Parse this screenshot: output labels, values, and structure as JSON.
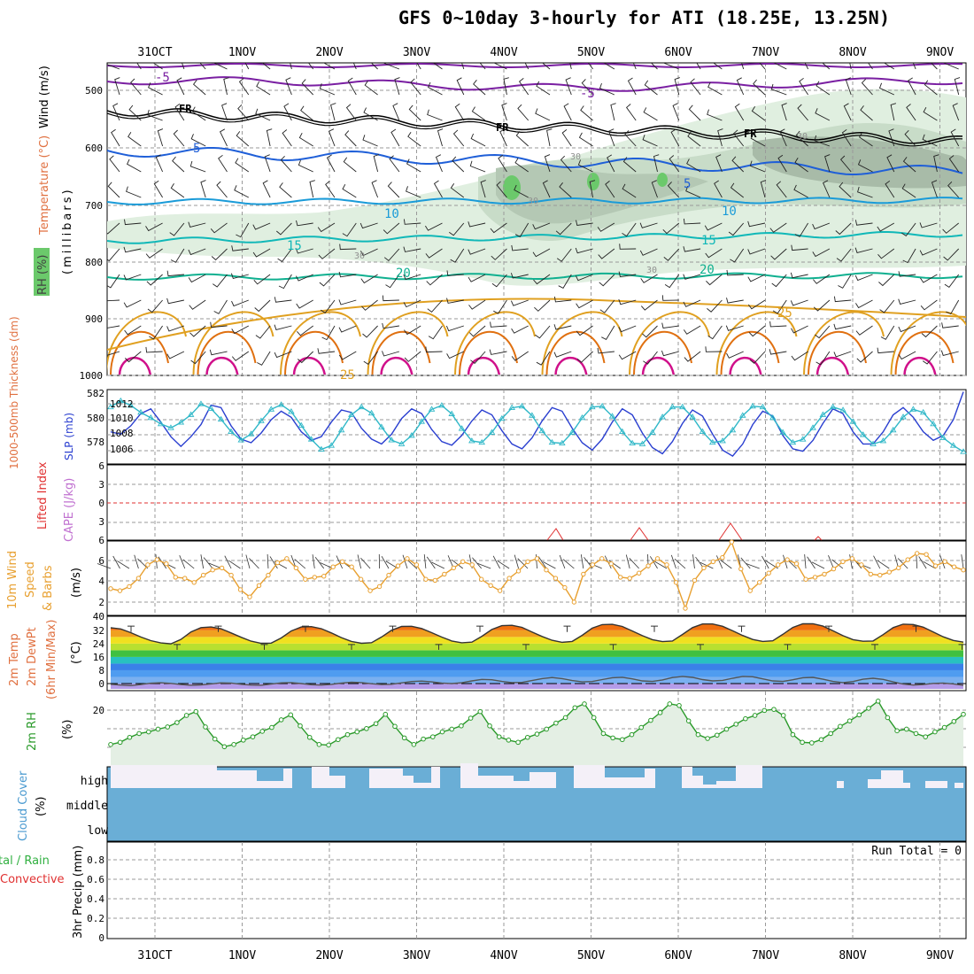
{
  "title": "GFS 0~10day 3-hourly for ATI (18.25E, 13.25N)",
  "date_labels": [
    "31OCT",
    "1NOV",
    "2NOV",
    "3NOV",
    "4NOV",
    "5NOV",
    "6NOV",
    "7NOV",
    "8NOV",
    "9NOV"
  ],
  "colors": {
    "grid": "#9a9a9a",
    "temp_neg": "#7a1fa2",
    "temp_mid": "#1f5fd8",
    "temp_10": "#1a9bd8",
    "temp_15": "#10b8b8",
    "temp_20": "#10b090",
    "temp_25": "#e0a020",
    "temp_30": "#e07010",
    "temp_35": "#d0108a",
    "thickness": "#2a3fd0",
    "slp": "#30b8c8",
    "wind10": "#e8a030",
    "rh2m": "#2a9a2a",
    "cloud": "#6aaed6",
    "cloud_clear": "#f4f0f8",
    "cape_li": "#e03030"
  },
  "panels": {
    "upper_air": {
      "ylabel_wind": "Wind (m/s)",
      "ylabel_temp": "Temperature (°C)",
      "ylabel_rh": "RH (%)",
      "ylabel_units": "(millibars)",
      "y_ticks": [
        "500",
        "600",
        "700",
        "800",
        "900",
        "1000"
      ],
      "contour_labels": [
        "-5",
        "FR",
        "5",
        "10",
        "15",
        "20",
        "25",
        "30"
      ]
    },
    "thickness_slp": {
      "ylabel_left": "1000-500mb Thickness (dm)",
      "ylabel_right": "SLP (mb)",
      "left_ticks": [
        "582",
        "580",
        "578"
      ],
      "right_ticks": [
        "1012",
        "1010",
        "1008",
        "1006"
      ]
    },
    "cape_li": {
      "ylabel_li": "Lifted Index",
      "ylabel_cape": "CAPE (J/kg)",
      "y_ticks": [
        "6",
        "3",
        "0",
        "3",
        "6"
      ]
    },
    "wind10m": {
      "ylabel_a": "10m Wind",
      "ylabel_b": "Speed",
      "ylabel_c": "& Barbs",
      "ylabel_units": "(m/s)",
      "y_ticks": [
        "6",
        "4",
        "2"
      ]
    },
    "temp2m": {
      "ylabel_a": "2m Temp",
      "ylabel_b": "2m DewPt",
      "ylabel_c": "(6hr Min/Max)",
      "ylabel_units": "(°C)",
      "y_ticks": [
        "40",
        "32",
        "24",
        "16",
        "8",
        "0"
      ]
    },
    "rh2m": {
      "ylabel": "2m RH",
      "ylabel_units": "(%)",
      "y_ticks": [
        "20"
      ]
    },
    "cloud": {
      "ylabel": "Cloud Cover",
      "ylabel_units": "(%)",
      "levels": [
        "high",
        "middle",
        "low"
      ]
    },
    "precip": {
      "ylabel_a": "tal / Rain",
      "ylabel_b": "Convective",
      "ylabel_units": "3hr Precip (mm)",
      "y_ticks": [
        "0.8",
        "0.6",
        "0.4",
        "0.2",
        "0"
      ],
      "run_total": "Run Total = 0"
    }
  },
  "chart_data": [
    {
      "type": "line",
      "name": "1000-500mb Thickness / SLP",
      "x_unit": "3-hourly steps from 30 Oct 12Z",
      "series": [
        {
          "name": "Thickness (dm)",
          "values": [
            579.0,
            578.8,
            579.5,
            580.5,
            580.9,
            579.8,
            578.6,
            577.8,
            578.6,
            579.6,
            581.2,
            581.0,
            579.5,
            578.4,
            578.1,
            578.9,
            580.0,
            580.7,
            580.2,
            579.0,
            578.3,
            578.6,
            579.8,
            580.8,
            580.6,
            579.3,
            578.4,
            578.0,
            578.8,
            580.1,
            580.9,
            580.5,
            579.2,
            578.2,
            577.9,
            578.7,
            579.9,
            580.8,
            580.4,
            579.1,
            578.0,
            577.6,
            578.5,
            579.9,
            581.0,
            580.7,
            579.3,
            578.1,
            577.5,
            578.4,
            579.8,
            580.9,
            580.4,
            578.9,
            577.7,
            577.2,
            578.2,
            579.7,
            580.8,
            580.3,
            578.8,
            577.5,
            577.0,
            578.0,
            579.6,
            580.7,
            580.3,
            578.7,
            577.6,
            577.4,
            578.3,
            579.7,
            580.9,
            580.5,
            579.0,
            578.0,
            578.0,
            579.0,
            580.4,
            581.0,
            580.2,
            579.0,
            578.3,
            578.7,
            580.0,
            582.3
          ]
        },
        {
          "name": "SLP (mb)",
          "values": [
            1011.6,
            1012.4,
            1011.8,
            1010.9,
            1010.2,
            1009.4,
            1008.9,
            1009.6,
            1010.6,
            1012.0,
            1011.4,
            1010.0,
            1008.4,
            1007.3,
            1008.1,
            1009.8,
            1011.3,
            1011.9,
            1011.0,
            1009.2,
            1007.4,
            1006.1,
            1006.6,
            1008.6,
            1010.6,
            1011.6,
            1010.8,
            1009.0,
            1007.3,
            1006.8,
            1007.9,
            1009.7,
            1011.3,
            1011.8,
            1010.7,
            1008.8,
            1007.2,
            1007.0,
            1008.3,
            1010.1,
            1011.5,
            1011.7,
            1010.5,
            1008.5,
            1007.0,
            1006.9,
            1008.3,
            1010.2,
            1011.6,
            1011.7,
            1010.4,
            1008.4,
            1006.9,
            1006.8,
            1008.3,
            1010.3,
            1011.6,
            1011.6,
            1010.3,
            1008.4,
            1007.0,
            1007.2,
            1008.6,
            1010.5,
            1011.7,
            1011.6,
            1010.2,
            1008.3,
            1007.0,
            1007.4,
            1008.9,
            1010.6,
            1011.6,
            1011.2,
            1009.7,
            1008.0,
            1006.8,
            1007.2,
            1008.6,
            1010.3,
            1011.3,
            1010.9,
            1009.4,
            1007.6,
            1006.6,
            1005.8
          ]
        }
      ]
    },
    {
      "type": "line",
      "name": "10m Wind Speed",
      "ylim": [
        1,
        7.5
      ],
      "series": [
        {
          "name": "Speed (m/s)",
          "values": [
            3.3,
            3.1,
            3.5,
            4.3,
            5.6,
            6.1,
            5.7,
            4.4,
            4.3,
            3.9,
            4.6,
            5.1,
            5.3,
            4.6,
            3.2,
            2.5,
            3.6,
            4.6,
            5.8,
            6.2,
            5.3,
            4.2,
            4.4,
            4.5,
            5.4,
            5.9,
            5.4,
            4.2,
            3.1,
            3.5,
            4.6,
            5.5,
            6.2,
            5.6,
            4.2,
            4.1,
            4.7,
            5.3,
            5.9,
            5.6,
            4.2,
            3.6,
            3.1,
            4.3,
            5.0,
            5.9,
            6.2,
            5.1,
            4.3,
            3.4,
            2.0,
            4.7,
            5.6,
            6.2,
            5.7,
            4.4,
            4.3,
            4.8,
            5.5,
            6.2,
            5.6,
            3.9,
            1.4,
            4.1,
            5.3,
            5.9,
            6.3,
            7.8,
            5.2,
            3.1,
            3.9,
            4.8,
            5.6,
            6.1,
            5.7,
            4.2,
            4.4,
            4.7,
            5.2,
            5.9,
            6.2,
            5.6,
            4.7,
            4.6,
            4.9,
            5.3,
            6.1,
            6.7,
            6.6,
            5.5,
            5.9,
            5.4,
            5.1
          ]
        }
      ]
    },
    {
      "type": "area",
      "name": "2m Temperature",
      "ylim": [
        -4,
        40
      ],
      "series": [
        {
          "name": "2m Temp (°C)",
          "values": [
            33.5,
            32.8,
            30.6,
            28.0,
            25.8,
            24.4,
            23.9,
            26.5,
            31.0,
            33.6,
            34.0,
            32.9,
            30.4,
            27.8,
            25.5,
            24.2,
            24.3,
            27.4,
            31.6,
            34.0,
            34.2,
            33.0,
            30.4,
            27.6,
            25.3,
            24.2,
            24.6,
            28.0,
            32.0,
            34.3,
            34.4,
            33.1,
            30.6,
            27.9,
            25.6,
            24.5,
            24.9,
            28.4,
            32.5,
            34.8,
            35.0,
            33.8,
            31.0,
            28.3,
            26.0,
            24.8,
            25.3,
            29.0,
            33.3,
            35.4,
            35.6,
            34.3,
            31.6,
            28.8,
            26.4,
            25.2,
            25.6,
            29.5,
            33.6,
            35.8,
            35.8,
            34.4,
            31.7,
            28.9,
            26.5,
            25.3,
            25.7,
            29.6,
            33.7,
            35.9,
            35.9,
            34.5,
            31.7,
            28.8,
            26.4,
            25.4,
            25.6,
            29.4,
            33.6,
            35.7,
            35.5,
            33.9,
            31.0,
            28.1,
            25.9,
            24.9
          ]
        },
        {
          "name": "2m DewPt (°C)",
          "values": [
            -0.4,
            -0.9,
            -1.2,
            -0.6,
            0.2,
            0.5,
            0.1,
            -0.6,
            -1.0,
            -0.8,
            -0.2,
            0.4,
            0.3,
            -0.4,
            -0.9,
            -1.0,
            -0.3,
            0.4,
            0.6,
            0.0,
            -0.7,
            -0.9,
            -0.5,
            0.3,
            0.8,
            0.6,
            -0.1,
            -0.6,
            -0.4,
            0.4,
            1.2,
            1.5,
            1.0,
            0.3,
            0.0,
            0.5,
            1.6,
            2.5,
            2.3,
            1.3,
            0.6,
            0.7,
            1.8,
            3.0,
            3.6,
            3.0,
            1.8,
            1.0,
            1.2,
            2.4,
            3.5,
            3.8,
            2.8,
            1.6,
            1.3,
            2.2,
            3.6,
            4.3,
            3.7,
            2.4,
            1.6,
            1.9,
            3.2,
            4.3,
            4.1,
            2.8,
            1.6,
            1.3,
            2.3,
            3.5,
            3.7,
            2.6,
            1.3,
            0.6,
            1.2,
            2.6,
            3.2,
            2.5,
            1.0,
            -0.3,
            -0.9,
            -0.6,
            0.1,
            0.3,
            -0.2,
            -1.0
          ]
        }
      ]
    },
    {
      "type": "line",
      "name": "2m RH",
      "ylim": [
        0,
        28
      ],
      "series": [
        {
          "name": "2m RH (%)",
          "values": [
            7.8,
            8.6,
            10.4,
            11.8,
            12.4,
            13.4,
            14.2,
            15.8,
            18.4,
            19.8,
            14.2,
            9.8,
            7.0,
            7.8,
            9.4,
            10.6,
            12.6,
            14.0,
            16.8,
            18.6,
            14.6,
            10.4,
            7.8,
            7.6,
            9.6,
            11.4,
            12.4,
            13.6,
            15.4,
            18.8,
            14.4,
            10.2,
            7.8,
            9.8,
            10.6,
            12.4,
            13.4,
            14.6,
            17.4,
            19.8,
            14.6,
            10.6,
            9.4,
            8.6,
            10.4,
            11.6,
            13.4,
            15.6,
            17.6,
            21.2,
            22.6,
            17.6,
            11.8,
            10.2,
            9.6,
            11.4,
            14.0,
            16.6,
            19.4,
            22.6,
            22.0,
            16.4,
            11.4,
            10.0,
            11.2,
            13.4,
            15.2,
            17.2,
            18.4,
            20.2,
            20.6,
            18.4,
            11.4,
            8.6,
            8.4,
            9.6,
            11.8,
            14.4,
            16.4,
            18.6,
            21.0,
            23.6,
            17.6,
            12.8,
            13.4,
            11.8,
            10.6,
            12.4,
            14.0,
            16.2,
            18.8
          ]
        }
      ]
    },
    {
      "type": "bar",
      "name": "3hr Precip",
      "ylim": [
        0,
        0.9
      ],
      "note": "Run Total = 0",
      "series": [
        {
          "name": "Total / Rain / Convective (mm)",
          "values": [
            0
          ]
        }
      ]
    }
  ]
}
